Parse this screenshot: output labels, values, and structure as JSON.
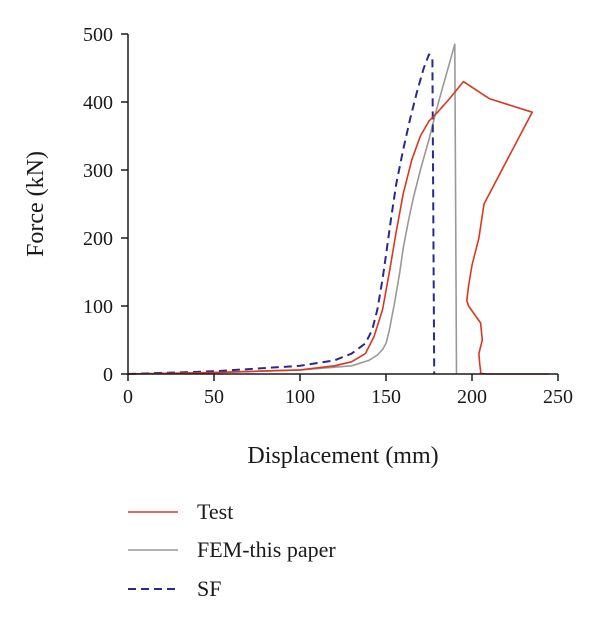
{
  "chart_data": {
    "type": "line",
    "title": "",
    "xlabel": "Displacement (mm)",
    "ylabel": "Force (kN)",
    "xlim": [
      0,
      250
    ],
    "ylim": [
      0,
      500
    ],
    "x_ticks": [
      0,
      50,
      100,
      150,
      200,
      250
    ],
    "y_ticks": [
      0,
      100,
      200,
      300,
      400,
      500
    ],
    "x_tick_labels": [
      "0",
      "50",
      "100",
      "150",
      "200",
      "250"
    ],
    "y_tick_labels": [
      "0",
      "100",
      "200",
      "300",
      "400",
      "500"
    ],
    "grid": false,
    "legend_position": "bottom",
    "series": [
      {
        "name": "Test",
        "color": "#d9381e",
        "dash": "solid",
        "x": [
          0,
          50,
          100,
          120,
          130,
          138,
          143,
          148,
          152,
          156,
          160,
          165,
          170,
          175,
          180,
          187,
          195,
          210,
          235,
          207,
          204,
          200,
          198,
          197,
          198,
          205,
          206,
          204,
          204.5,
          205,
          205,
          208,
          245
        ],
        "y": [
          0,
          2,
          6,
          12,
          18,
          30,
          55,
          95,
          150,
          210,
          265,
          315,
          350,
          372,
          385,
          405,
          430,
          405,
          385,
          250,
          200,
          160,
          130,
          108,
          100,
          75,
          50,
          30,
          15,
          5,
          1,
          0,
          0
        ]
      },
      {
        "name": "FEM-this paper",
        "color": "#999999",
        "dash": "solid",
        "x": [
          0,
          50,
          100,
          130,
          140,
          145,
          148,
          150,
          152,
          155,
          158,
          160,
          163,
          166,
          170,
          175,
          180,
          185,
          190,
          191,
          191
        ],
        "y": [
          0,
          2,
          6,
          12,
          20,
          28,
          36,
          45,
          65,
          105,
          150,
          185,
          225,
          260,
          300,
          345,
          395,
          440,
          485,
          1,
          0
        ]
      },
      {
        "name": "SF",
        "color": "#2a2a8c",
        "dash": "dashed",
        "x": [
          0,
          50,
          100,
          120,
          130,
          138,
          142,
          145,
          148,
          150,
          153,
          156,
          160,
          164,
          168,
          172,
          175,
          177,
          178,
          178
        ],
        "y": [
          0,
          4,
          12,
          20,
          30,
          45,
          65,
          95,
          140,
          175,
          230,
          280,
          330,
          375,
          415,
          450,
          470,
          465,
          5,
          0
        ]
      }
    ]
  }
}
